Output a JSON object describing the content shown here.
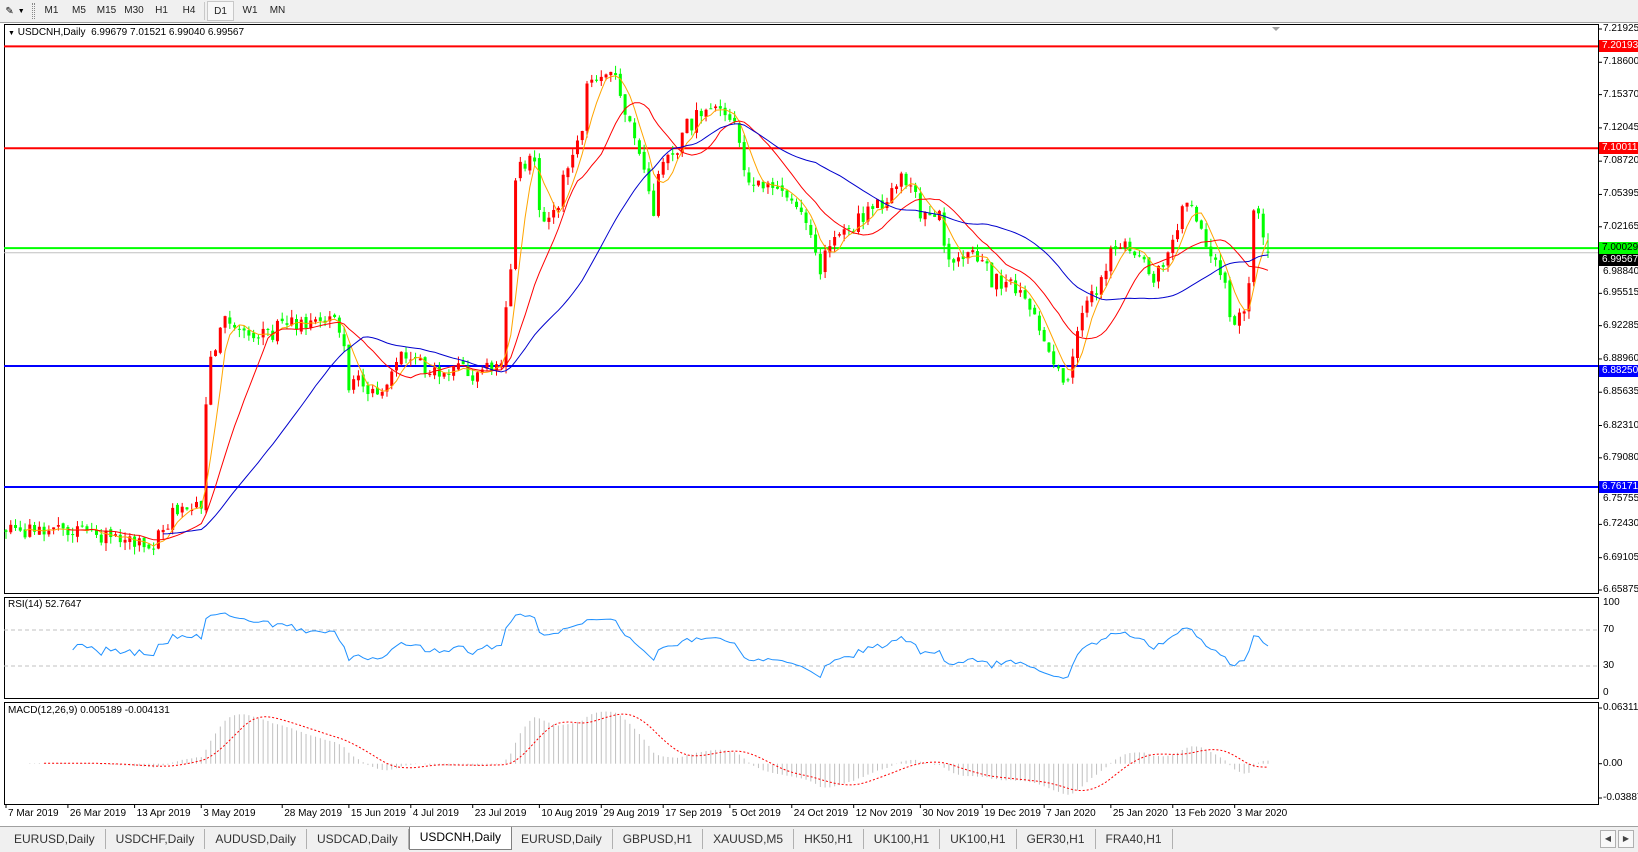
{
  "toolbar": {
    "timeframes": [
      "M1",
      "M5",
      "M15",
      "M30",
      "H1",
      "H4",
      "D1",
      "W1",
      "MN"
    ],
    "active_timeframe": "D1"
  },
  "chart_header": {
    "symbol": "USDCNH,Daily",
    "ohlc": "6.99679 7.01521 6.99040 6.99567"
  },
  "price_axis": {
    "ticks": [
      "7.21925",
      "7.18600",
      "7.15370",
      "7.12045",
      "7.08720",
      "7.05395",
      "7.02165",
      "6.98840",
      "6.95515",
      "6.92285",
      "6.88960",
      "6.85635",
      "6.82310",
      "6.79080",
      "6.75755",
      "6.72430",
      "6.69105",
      "6.65875"
    ]
  },
  "levels": [
    {
      "price": "7.20193",
      "color": "#ff0000"
    },
    {
      "price": "7.10011",
      "color": "#ff0000"
    },
    {
      "price": "7.00029",
      "color": "#00ff00"
    },
    {
      "price": "6.88250",
      "color": "#0000ff"
    },
    {
      "price": "6.76171",
      "color": "#0000ff"
    }
  ],
  "current_price": {
    "price": "6.99567",
    "color": "#000000",
    "line_color": "#c0c0c0"
  },
  "rsi": {
    "label": "RSI(14) 52.7647",
    "levels": [
      "100",
      "70",
      "30",
      "0"
    ],
    "color": "#1e90ff"
  },
  "macd": {
    "label": "MACD(12,26,9) 0.005189 -0.004131",
    "scale": [
      "0.063113",
      "0.00",
      "-0.038872"
    ],
    "hist_color": "#c0c0c0",
    "signal_color": "#ff0000"
  },
  "date_axis": [
    "7 Mar 2019",
    "26 Mar 2019",
    "13 Apr 2019",
    "3 May 2019",
    "28 May 2019",
    "15 Jun 2019",
    "4 Jul 2019",
    "23 Jul 2019",
    "10 Aug 2019",
    "29 Aug 2019",
    "17 Sep 2019",
    "5 Oct 2019",
    "24 Oct 2019",
    "12 Nov 2019",
    "30 Nov 2019",
    "19 Dec 2019",
    "7 Jan 2020",
    "25 Jan 2020",
    "13 Feb 2020",
    "3 Mar 2020"
  ],
  "tabs": [
    {
      "label": "EURUSD,Daily"
    },
    {
      "label": "USDCHF,Daily"
    },
    {
      "label": "AUDUSD,Daily"
    },
    {
      "label": "USDCAD,Daily"
    },
    {
      "label": "USDCNH,Daily",
      "active": true
    },
    {
      "label": "EURUSD,Daily"
    },
    {
      "label": "GBPUSD,H1"
    },
    {
      "label": "XAUUSD,M5"
    },
    {
      "label": "HK50,H1"
    },
    {
      "label": "UK100,H1"
    },
    {
      "label": "UK100,H1"
    },
    {
      "label": "GER30,H1"
    },
    {
      "label": "FRA40,H1"
    }
  ],
  "colors": {
    "bull": "#ff0000",
    "bear": "#00ff00",
    "ma_fast": "#ffa500",
    "ma_mid": "#ff0000",
    "ma_slow": "#0000cd"
  },
  "chart_data": {
    "type": "candlestick",
    "symbol": "USDCNH",
    "timeframe": "Daily",
    "ylim": [
      6.65875,
      7.21925
    ],
    "last_bar": {
      "open": 6.99679,
      "high": 7.01521,
      "low": 6.9904,
      "close": 6.99567
    },
    "approx_closes": [
      [
        "2019-03-07",
        6.716
      ],
      [
        "2019-03-25",
        6.721
      ],
      [
        "2019-04-08",
        6.716
      ],
      [
        "2019-04-19",
        6.695
      ],
      [
        "2019-04-25",
        6.737
      ],
      [
        "2019-05-03",
        6.737
      ],
      [
        "2019-05-07",
        6.883
      ],
      [
        "2019-05-10",
        6.935
      ],
      [
        "2019-05-20",
        6.914
      ],
      [
        "2019-06-03",
        6.93
      ],
      [
        "2019-06-12",
        6.93
      ],
      [
        "2019-06-17",
        6.862
      ],
      [
        "2019-06-25",
        6.852
      ],
      [
        "2019-07-02",
        6.888
      ],
      [
        "2019-07-12",
        6.878
      ],
      [
        "2019-07-31",
        6.883
      ],
      [
        "2019-08-02",
        6.977
      ],
      [
        "2019-08-06",
        7.092
      ],
      [
        "2019-08-09",
        7.09
      ],
      [
        "2019-08-13",
        7.019
      ],
      [
        "2019-08-20",
        7.081
      ],
      [
        "2019-08-26",
        7.165
      ],
      [
        "2019-09-02",
        7.175
      ],
      [
        "2019-09-05",
        7.144
      ],
      [
        "2019-09-10",
        7.092
      ],
      [
        "2019-09-13",
        7.04
      ],
      [
        "2019-09-17",
        7.081
      ],
      [
        "2019-09-24",
        7.123
      ],
      [
        "2019-09-30",
        7.144
      ],
      [
        "2019-10-08",
        7.13
      ],
      [
        "2019-10-11",
        7.071
      ],
      [
        "2019-10-21",
        7.06
      ],
      [
        "2019-10-29",
        7.03
      ],
      [
        "2019-11-01",
        6.977
      ],
      [
        "2019-11-06",
        7.008
      ],
      [
        "2019-11-18",
        7.04
      ],
      [
        "2019-11-27",
        7.071
      ],
      [
        "2019-12-02",
        7.04
      ],
      [
        "2019-12-06",
        7.03
      ],
      [
        "2019-12-10",
        6.988
      ],
      [
        "2019-12-16",
        7.0
      ],
      [
        "2019-12-24",
        6.967
      ],
      [
        "2019-12-31",
        6.956
      ],
      [
        "2020-01-06",
        6.915
      ],
      [
        "2020-01-09",
        6.883
      ],
      [
        "2020-01-14",
        6.873
      ],
      [
        "2020-01-17",
        6.935
      ],
      [
        "2020-01-22",
        6.956
      ],
      [
        "2020-01-29",
        7.01
      ],
      [
        "2020-02-04",
        6.988
      ],
      [
        "2020-02-07",
        6.967
      ],
      [
        "2020-02-12",
        6.998
      ],
      [
        "2020-02-18",
        7.045
      ],
      [
        "2020-02-21",
        7.025
      ],
      [
        "2020-02-26",
        6.988
      ],
      [
        "2020-03-02",
        6.925
      ],
      [
        "2020-03-05",
        6.946
      ],
      [
        "2020-03-09",
        7.04
      ],
      [
        "2020-03-12",
        6.996
      ]
    ],
    "moving_averages": [
      {
        "period": 5,
        "color": "#ffa500"
      },
      {
        "period": 14,
        "color": "#ff0000"
      },
      {
        "period": 34,
        "color": "#0000cd"
      }
    ],
    "grid": false
  }
}
